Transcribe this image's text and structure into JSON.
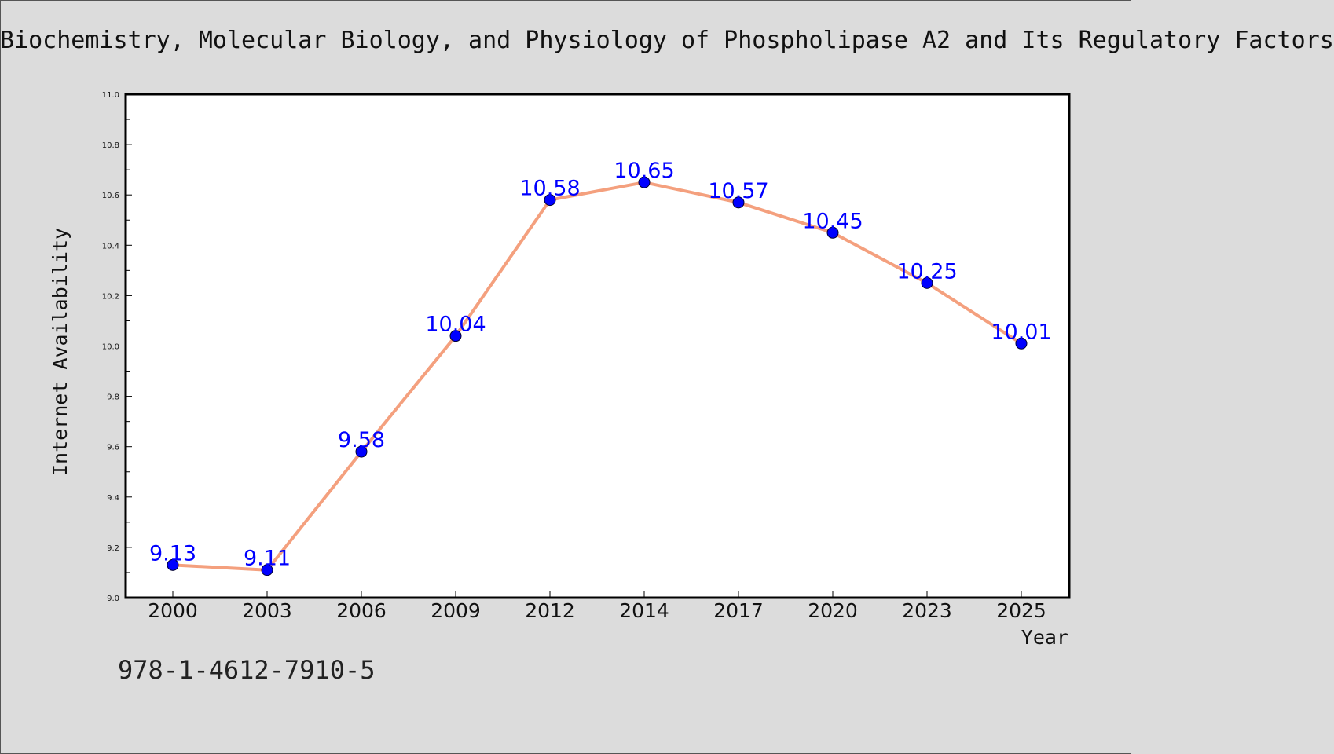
{
  "page": {
    "title": "Biochemistry, Molecular Biology, and Physiology of Phospholipase A2 and Its Regulatory Factors",
    "footer_id": "978-1-4612-7910-5"
  },
  "colors": {
    "background": "#dcdcdc",
    "plot_background": "#ffffff",
    "line": "#f4a07e",
    "marker": "#0000ff",
    "data_label": "#0000ff"
  },
  "chart_data": {
    "type": "line",
    "title": "Biochemistry, Molecular Biology, and Physiology of Phospholipase A2 and Its Regulatory Factors",
    "xlabel": "Year",
    "ylabel": "Internet Availability",
    "categories": [
      "2000",
      "2003",
      "2006",
      "2009",
      "2012",
      "2014",
      "2017",
      "2020",
      "2023",
      "2025"
    ],
    "series": [
      {
        "values": [
          9.13,
          9.11,
          9.58,
          10.04,
          10.58,
          10.65,
          10.57,
          10.45,
          10.25,
          10.01
        ]
      }
    ],
    "data_labels": [
      "9.13",
      "9.11",
      "9.58",
      "10.04",
      "10.58",
      "10.65",
      "10.57",
      "10.45",
      "10.25",
      "10.01"
    ],
    "ylim": [
      9.0,
      11.0
    ],
    "yticks": [
      "9.0",
      "9.2",
      "9.4",
      "9.6",
      "9.8",
      "10.0",
      "10.2",
      "10.4",
      "10.6",
      "10.8",
      "11.0"
    ],
    "grid": false,
    "legend": "none"
  }
}
